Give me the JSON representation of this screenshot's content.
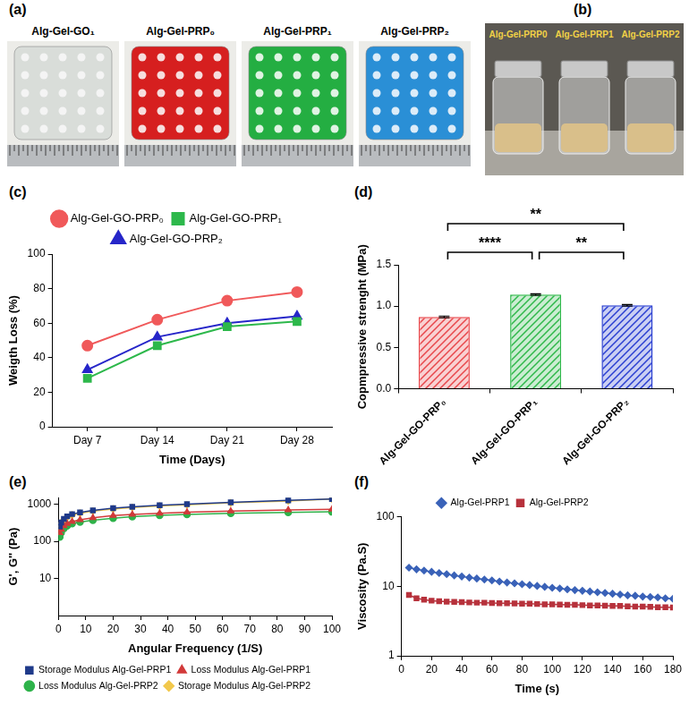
{
  "photos": [
    {
      "panel": "(a)",
      "captions": [
        "Alg-Gel-GO₁",
        "Alg-Gel-PRP₀",
        "Alg-Gel-PRP₁",
        "Alg-Gel-PRP₂"
      ]
    },
    {
      "panel": "(b)",
      "captions": [
        "Alg-Gel-PRP0",
        "Alg-Gel-PRP1",
        "Alg-Gel-PRP2"
      ]
    }
  ],
  "chart_data": [
    {
      "panel": "(c)",
      "type": "line",
      "x_label": "Time (Days)",
      "y_label": "Weigth Loss (%)",
      "categories": [
        "Day 7",
        "Day 14",
        "Day 21",
        "Day 28"
      ],
      "series": [
        {
          "name": "Alg-Gel-GO-PRP₀",
          "color": "#f0595a",
          "marker": "circle",
          "values": [
            47,
            62,
            73,
            78
          ]
        },
        {
          "name": "Alg-Gel-GO-PRP₁",
          "color": "#2db84b",
          "marker": "square",
          "values": [
            28,
            47,
            58,
            61
          ]
        },
        {
          "name": "Alg-Gel-GO-PRP₂",
          "color": "#2626c9",
          "marker": "triangle",
          "values": [
            33,
            52,
            60,
            64
          ]
        }
      ],
      "ylim": [
        0,
        100
      ],
      "yticks": [
        0,
        20,
        40,
        60,
        80,
        100
      ],
      "grid": false,
      "legend": "top"
    },
    {
      "panel": "(d)",
      "type": "bar",
      "y_label": "Copmpressive strenght (MPa)",
      "categories": [
        "Alg-Gel-GO-PRP₀",
        "Alg-Gel-GO-PRP₁",
        "Alg-Gel-GO-PRP₂"
      ],
      "values": [
        0.87,
        1.14,
        1.01
      ],
      "errors": [
        0.01,
        0.01,
        0.01
      ],
      "colors": [
        "#e8474b",
        "#2fb84a",
        "#2a3fd1"
      ],
      "ylim": [
        0,
        1.5
      ],
      "yticks": [
        {
          "value": 0,
          "label": "0.0"
        },
        {
          "value": 0.5,
          "label": "0.5"
        },
        {
          "value": 1,
          "label": "1.0"
        },
        {
          "value": 1.5,
          "label": "1.5"
        }
      ],
      "significance": [
        {
          "between": [
            0,
            1
          ],
          "label": "****"
        },
        {
          "between": [
            1,
            2
          ],
          "label": "**"
        },
        {
          "between": [
            0,
            2
          ],
          "label": "**"
        }
      ],
      "grid": false
    },
    {
      "panel": "(e)",
      "type": "line",
      "x_label": "Angular Frequency (1/S)",
      "y_label": "G', G'' (Pa)",
      "log": "y",
      "x": [
        0.5,
        1,
        2,
        3.2,
        5,
        7.9,
        12.6,
        20,
        27,
        37,
        47,
        63,
        84,
        100
      ],
      "series": [
        {
          "name": "Storage Modulus Alg-Gel-PRP1",
          "color": "#1f3a8a",
          "marker": "square",
          "values": [
            250,
            320,
            400,
            470,
            540,
            600,
            680,
            780,
            850,
            930,
            1000,
            1120,
            1260,
            1380
          ]
        },
        {
          "name": "Loss Modulus Alg-Gel-PRP1",
          "color": "#d23a3a",
          "marker": "triangle",
          "values": [
            170,
            210,
            260,
            300,
            340,
            380,
            430,
            490,
            530,
            570,
            610,
            650,
            700,
            730
          ]
        },
        {
          "name": "Loss Modulus Alg-Gel-PRP2",
          "color": "#2eb34a",
          "marker": "circle",
          "values": [
            130,
            170,
            220,
            260,
            300,
            330,
            370,
            420,
            460,
            500,
            530,
            570,
            600,
            620
          ]
        },
        {
          "name": "Storage Modulus Alg-Gel-PRP2",
          "color": "#f2c84b",
          "marker": "diamond",
          "values": [
            230,
            300,
            380,
            440,
            510,
            570,
            650,
            740,
            810,
            890,
            960,
            1080,
            1220,
            1370
          ]
        }
      ],
      "xlim": [
        0,
        100
      ],
      "xticks": [
        0,
        10,
        20,
        30,
        40,
        50,
        60,
        70,
        80,
        90,
        100
      ],
      "ylim": [
        1,
        1500
      ],
      "yticks": [
        10,
        100,
        1000
      ],
      "grid": false,
      "legend": "bottom"
    },
    {
      "panel": "(f)",
      "type": "line",
      "x_label": "Time (s)",
      "y_label": "Viscosity (Pa.S)",
      "log": "y",
      "x": [
        5,
        10,
        15,
        20,
        25,
        30,
        35,
        40,
        45,
        50,
        55,
        60,
        65,
        70,
        75,
        80,
        85,
        90,
        95,
        100,
        105,
        110,
        115,
        120,
        125,
        130,
        135,
        140,
        145,
        150,
        155,
        160,
        165,
        170,
        175,
        180
      ],
      "series": [
        {
          "name": "Alg-Gel-PRP1",
          "color": "#3a62b8",
          "marker": "diamond",
          "values": [
            18.5,
            17.5,
            16.8,
            16.1,
            15.5,
            14.9,
            14.3,
            13.8,
            13.3,
            12.9,
            12.5,
            12.1,
            11.7,
            11.3,
            11.0,
            10.7,
            10.4,
            10.1,
            9.8,
            9.5,
            9.3,
            9.0,
            8.8,
            8.6,
            8.4,
            8.2,
            8.0,
            7.8,
            7.6,
            7.4,
            7.3,
            7.1,
            7.0,
            6.9,
            6.7,
            6.6
          ]
        },
        {
          "name": "Alg-Gel-PRP2",
          "color": "#b7323c",
          "marker": "square",
          "values": [
            7.5,
            6.7,
            6.4,
            6.2,
            6.1,
            6.0,
            5.95,
            5.9,
            5.85,
            5.8,
            5.8,
            5.75,
            5.7,
            5.7,
            5.65,
            5.6,
            5.6,
            5.55,
            5.5,
            5.5,
            5.45,
            5.4,
            5.4,
            5.35,
            5.3,
            5.3,
            5.25,
            5.2,
            5.2,
            5.15,
            5.1,
            5.1,
            5.05,
            5.0,
            5.0,
            4.95
          ]
        }
      ],
      "xlim": [
        0,
        180
      ],
      "xticks": [
        0,
        20,
        40,
        60,
        80,
        100,
        120,
        140,
        160,
        180
      ],
      "ylim": [
        1,
        100
      ],
      "yticks": [
        1,
        10,
        100
      ],
      "grid": false,
      "legend": "top"
    }
  ]
}
